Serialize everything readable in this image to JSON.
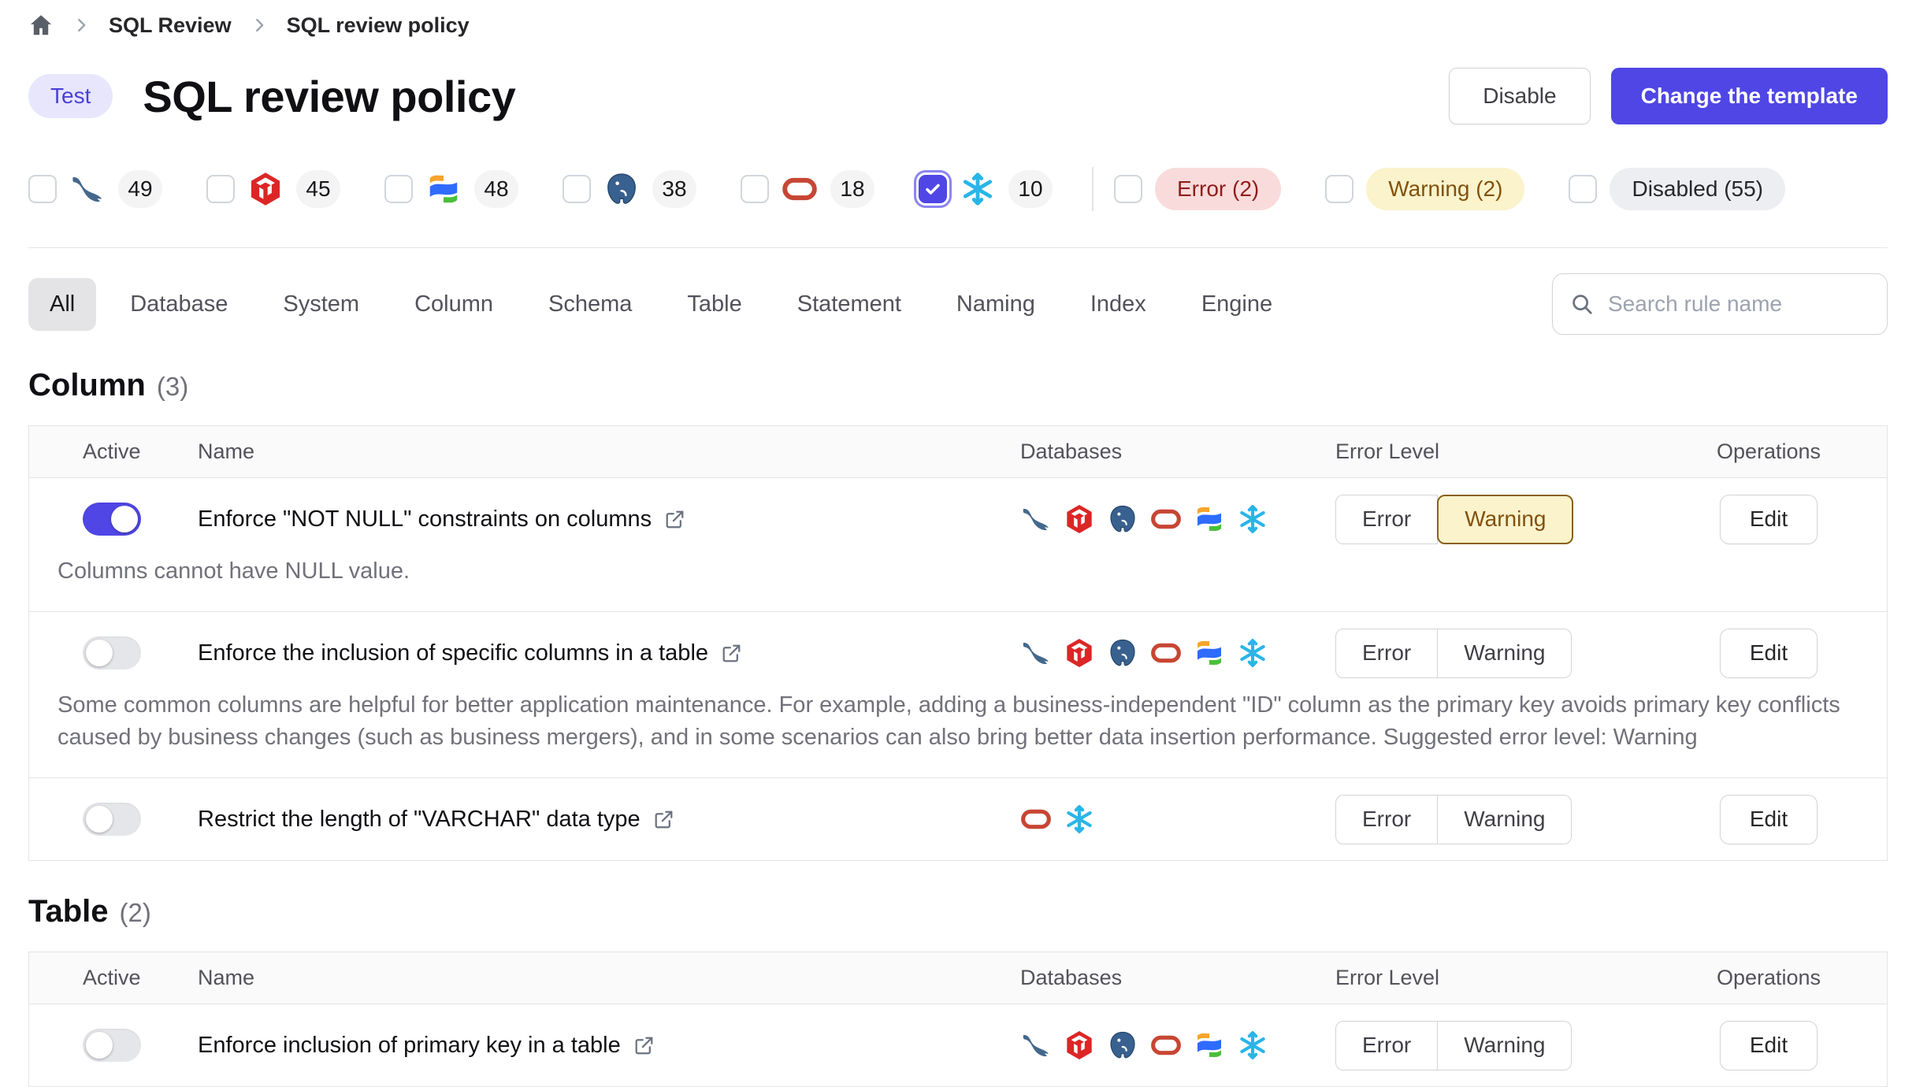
{
  "breadcrumb": {
    "items": [
      "SQL Review",
      "SQL review policy"
    ]
  },
  "header": {
    "badge": "Test",
    "title": "SQL review policy",
    "buttons": {
      "disable": "Disable",
      "change_template": "Change the template"
    }
  },
  "filters": {
    "engines": [
      {
        "engine": "mysql",
        "count": "49",
        "checked": false
      },
      {
        "engine": "tidb",
        "count": "45",
        "checked": false
      },
      {
        "engine": "oceanbase",
        "count": "48",
        "checked": false
      },
      {
        "engine": "postgresql",
        "count": "38",
        "checked": false
      },
      {
        "engine": "oracle",
        "count": "18",
        "checked": false
      },
      {
        "engine": "snowflake",
        "count": "10",
        "checked": true
      }
    ],
    "levels": [
      {
        "label": "Error (2)",
        "kind": "error",
        "checked": false
      },
      {
        "label": "Warning (2)",
        "kind": "warning",
        "checked": false
      },
      {
        "label": "Disabled (55)",
        "kind": "disabled",
        "checked": false
      }
    ]
  },
  "tabs": {
    "items": [
      "All",
      "Database",
      "System",
      "Column",
      "Schema",
      "Table",
      "Statement",
      "Naming",
      "Index",
      "Engine"
    ],
    "active": "All"
  },
  "search": {
    "placeholder": "Search rule name"
  },
  "table_headers": [
    "Active",
    "Name",
    "Databases",
    "Error Level",
    "Operations"
  ],
  "row_controls": {
    "error": "Error",
    "warning": "Warning",
    "edit": "Edit"
  },
  "sections": [
    {
      "title": "Column",
      "count": "(3)",
      "rows": [
        {
          "active": true,
          "name": "Enforce \"NOT NULL\" constraints on columns",
          "description": "Columns cannot have NULL value.",
          "databases": [
            "mysql",
            "tidb",
            "postgresql",
            "oracle",
            "oceanbase",
            "snowflake"
          ],
          "selected_level": "warning"
        },
        {
          "active": false,
          "name": "Enforce the inclusion of specific columns in a table",
          "description": "Some common columns are helpful for better application maintenance. For example, adding a business-independent \"ID\" column as the primary key avoids primary key conflicts caused by business changes (such as business mergers), and in some scenarios can also bring better data insertion performance. Suggested error level: Warning",
          "databases": [
            "mysql",
            "tidb",
            "postgresql",
            "oracle",
            "oceanbase",
            "snowflake"
          ],
          "selected_level": null
        },
        {
          "active": false,
          "name": "Restrict the length of \"VARCHAR\" data type",
          "description": "",
          "databases": [
            "oracle",
            "snowflake"
          ],
          "selected_level": null
        }
      ]
    },
    {
      "title": "Table",
      "count": "(2)",
      "rows": [
        {
          "active": false,
          "name": "Enforce inclusion of primary key in a table",
          "description": "",
          "databases": [
            "mysql",
            "tidb",
            "postgresql",
            "oracle",
            "oceanbase",
            "snowflake"
          ],
          "selected_level": null
        }
      ]
    }
  ],
  "colors": {
    "accent": "#4f46e5",
    "error_bg": "#fadbdb",
    "error_text": "#8f1d1d",
    "warning_bg": "#faf3cb",
    "warning_text": "#82520e",
    "warning_border": "#8a6116",
    "disabled_bg": "#eceef1",
    "mysql": "#44688c",
    "tidb": "#dc2626",
    "postgresql": "#39618f",
    "oracle": "#c74634",
    "snowflake": "#29b5e8"
  }
}
